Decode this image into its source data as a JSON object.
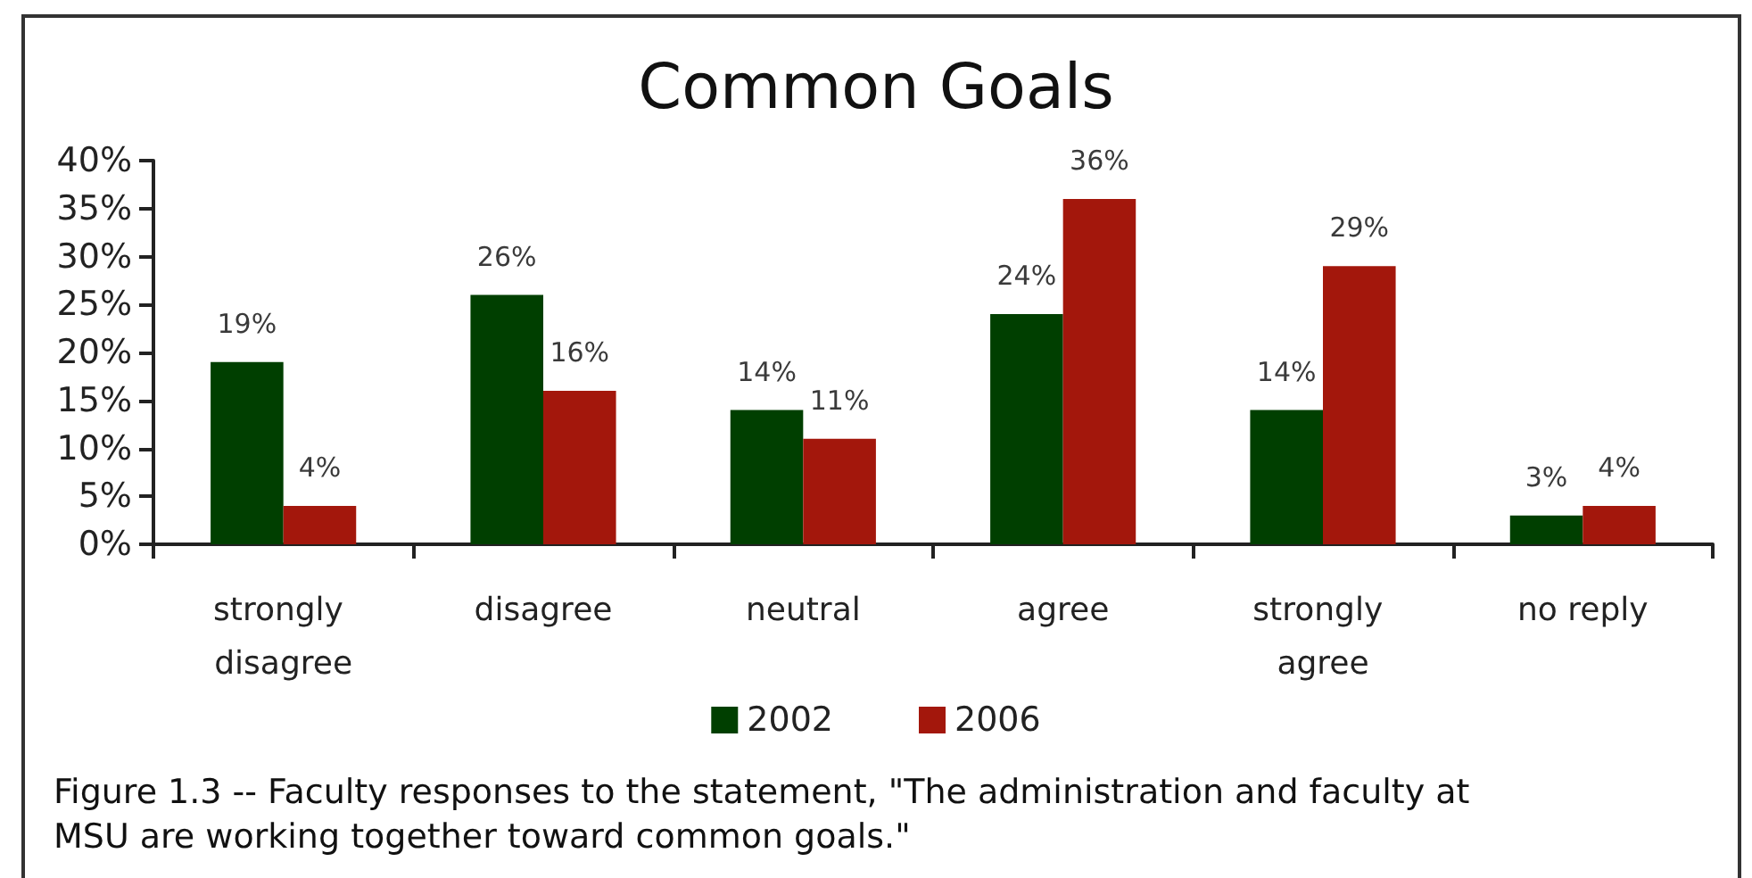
{
  "chart_data": {
    "type": "bar",
    "title": "Common Goals",
    "categories": [
      "strongly disagree",
      "disagree",
      "neutral",
      "agree",
      "strongly agree",
      "no reply"
    ],
    "series": [
      {
        "name": "2002",
        "color": "#003f00",
        "values": [
          19,
          26,
          14,
          24,
          14,
          3
        ],
        "value_labels": [
          "19%",
          "26%",
          "14%",
          "24%",
          "14%",
          "3%"
        ]
      },
      {
        "name": "2006",
        "color": "#a3170c",
        "values": [
          4,
          16,
          11,
          36,
          29,
          4
        ],
        "value_labels": [
          "4%",
          "16%",
          "11%",
          "36%",
          "29%",
          "4%"
        ]
      }
    ],
    "ylim": [
      0,
      40
    ],
    "yticks": [
      {
        "value": 0,
        "label": "0%"
      },
      {
        "value": 5,
        "label": "5%"
      },
      {
        "value": 10,
        "label": "10%"
      },
      {
        "value": 15,
        "label": "15%"
      },
      {
        "value": 20,
        "label": "20%"
      },
      {
        "value": 25,
        "label": "25%"
      },
      {
        "value": 30,
        "label": "30%"
      },
      {
        "value": 35,
        "label": "35%"
      },
      {
        "value": 40,
        "label": "40%"
      }
    ],
    "grid": false,
    "legend": "bottom",
    "annotations": [
      "Figure 1.3 -- Faculty responses to the statement, \"The administration and faculty at MSU are working together toward common goals.\""
    ]
  }
}
